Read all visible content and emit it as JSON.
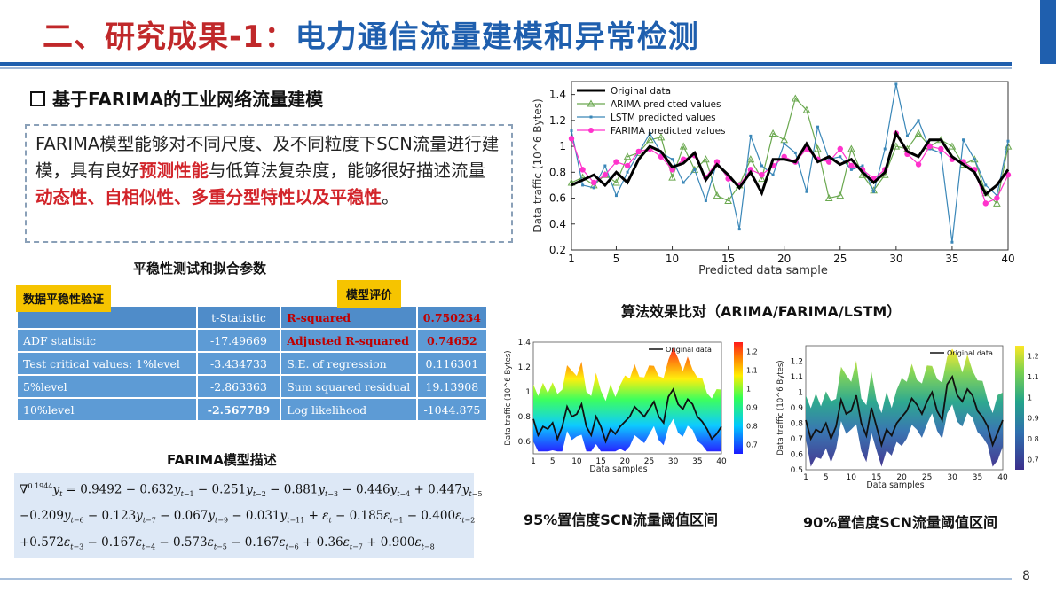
{
  "header": {
    "title_prefix": "二、研究成果-1：",
    "title_main": "电力通信流量建模和异常检测"
  },
  "section": {
    "heading": "基于FARIMA的工业网络流量建模",
    "desc_parts": [
      {
        "text": "FARIMA模型能够对不同尺度、及不同粒度下SCN流量进行建模，具有良好",
        "red": false
      },
      {
        "text": "预测性能",
        "red": true
      },
      {
        "text": "与低算法复杂度，能够很好描述流量",
        "red": false
      },
      {
        "text": "动态性、自相似性、多重分型特性以及平稳性",
        "red": true
      },
      {
        "text": "。",
        "red": false
      }
    ]
  },
  "table": {
    "title": "平稳性测试和拟合参数",
    "tag_left": "数据平稳性验证",
    "tag_right": "模型评价",
    "header": [
      "",
      "t-Statistic",
      "R-squared",
      "0.750234"
    ],
    "rows": [
      [
        "ADF statistic",
        "-17.49669",
        "Adjusted R-squared",
        "0.74652"
      ],
      [
        "Test critical values: 1%level",
        "-3.434733",
        "S.E. of regression",
        "0.116301"
      ],
      [
        "5%level",
        "-2.863363",
        "Sum squared residual",
        "19.13908"
      ],
      [
        "10%level",
        "-2.567789",
        "Log likelihood",
        "-1044.875"
      ]
    ]
  },
  "model": {
    "title": "FARIMA模型描述",
    "eq_line1": "∇^0.1944 y_t = 0.9492 − 0.632y_{t−1} − 0.251y_{t−2} − 0.881y_{t−3} − 0.446y_{t−4} + 0.447y_{t−5}",
    "eq_line2": "−0.209y_{t−6} − 0.123y_{t−7} − 0.067y_{t−9} − 0.031y_{t−11} + ε_t − 0.185ε_{t−1} − 0.400ε_{t−2}",
    "eq_line3": "+0.572ε_{t−3} − 0.167ε_{t−4} − 0.573ε_{t−5} − 0.167ε_{t−6} + 0.36ε_{t−7} + 0.900ε_{t−8}"
  },
  "comparison_title": "算法效果比对（ARIMA/FARIMA/LSTM）",
  "captions": {
    "left": "95%置信度SCN流量阈值区间",
    "right": "90%置信度SCN流量阈值区间"
  },
  "page_number": "8",
  "colors": {
    "title_red": "#c0282a",
    "title_blue": "#1f5fae",
    "table_blue": "#5d9bd5",
    "tag_yellow": "#f6c400"
  },
  "chart_data": [
    {
      "type": "line",
      "xlabel": "Predicted data sample",
      "ylabel": "Data traffic (10^6 Bytes)",
      "xlim": [
        1,
        40
      ],
      "ylim": [
        0.2,
        1.5
      ],
      "xticks": [
        "1",
        "5",
        "10",
        "15",
        "20",
        "25",
        "30",
        "35",
        "40"
      ],
      "yticks": [
        "0.2",
        "0.4",
        "0.6",
        "0.8",
        "1",
        "1.2",
        "1.4"
      ],
      "legend": "top-left",
      "series": [
        {
          "name": "Original data",
          "color": "#000000",
          "values": [
            0.7,
            0.74,
            0.78,
            0.7,
            0.8,
            0.72,
            0.9,
            1.0,
            0.96,
            0.84,
            0.87,
            0.95,
            0.74,
            0.86,
            0.78,
            0.68,
            0.8,
            0.64,
            0.9,
            0.9,
            0.88,
            1.02,
            0.88,
            0.92,
            0.86,
            0.9,
            0.8,
            0.72,
            0.8,
            1.1,
            0.96,
            0.92,
            1.05,
            1.05,
            0.92,
            0.86,
            0.8,
            0.63,
            0.7,
            0.82
          ]
        },
        {
          "name": "ARIMA predicted values",
          "color": "#6aa84f",
          "values": [
            0.72,
            0.76,
            0.7,
            0.78,
            0.72,
            0.92,
            0.95,
            1.05,
            1.07,
            0.76,
            1.0,
            0.82,
            0.9,
            0.62,
            0.58,
            0.7,
            0.9,
            0.75,
            1.1,
            1.05,
            1.37,
            1.28,
            0.98,
            0.6,
            0.62,
            0.98,
            0.78,
            0.66,
            0.78,
            1.0,
            0.98,
            1.1,
            1.0,
            1.05,
            1.0,
            0.86,
            0.9,
            0.64,
            0.56,
            1.0
          ]
        },
        {
          "name": "LSTM predicted values",
          "color": "#3a87b8",
          "values": [
            1.12,
            0.7,
            0.68,
            0.85,
            0.62,
            0.8,
            0.95,
            1.1,
            0.95,
            0.9,
            0.72,
            0.82,
            0.58,
            0.88,
            0.75,
            0.36,
            1.08,
            0.85,
            0.78,
            1.02,
            0.95,
            0.65,
            1.15,
            0.9,
            0.92,
            0.82,
            0.85,
            0.65,
            0.98,
            1.48,
            1.08,
            1.2,
            0.98,
            0.95,
            0.26,
            1.05,
            0.9,
            0.7,
            0.62,
            1.04
          ]
        },
        {
          "name": "FARIMA predicted values",
          "color": "#ff33cc",
          "values": [
            1.06,
            0.82,
            0.72,
            0.78,
            0.88,
            0.85,
            0.96,
            0.98,
            0.92,
            0.82,
            0.9,
            0.93,
            0.76,
            0.88,
            0.75,
            0.7,
            0.82,
            0.78,
            0.85,
            0.92,
            0.88,
            0.98,
            0.9,
            0.88,
            0.98,
            0.85,
            0.82,
            0.75,
            0.82,
            1.1,
            0.94,
            0.86,
            1.0,
            0.98,
            0.9,
            0.88,
            0.82,
            0.56,
            0.6,
            0.78
          ]
        }
      ]
    },
    {
      "type": "area",
      "xlabel": "Data samples",
      "ylabel": "Data traffic (10^6 Bytes)",
      "xlim": [
        1,
        40
      ],
      "ylim": [
        0.5,
        1.4
      ],
      "xticks": [
        "1",
        "5",
        "10",
        "15",
        "20",
        "25",
        "30",
        "35",
        "40"
      ],
      "yticks": [
        "0.6",
        "0.8",
        "1",
        "1.2",
        "1.4"
      ],
      "legend": "top-right",
      "series": [
        {
          "name": "Original data",
          "values": [
            0.78,
            0.65,
            0.72,
            0.7,
            0.75,
            0.62,
            0.72,
            0.88,
            0.8,
            0.82,
            0.9,
            0.72,
            0.65,
            0.8,
            0.72,
            0.6,
            0.7,
            0.66,
            0.72,
            0.76,
            0.8,
            0.88,
            0.84,
            0.8,
            0.86,
            0.92,
            0.8,
            0.75,
            0.96,
            1.02,
            0.9,
            0.86,
            0.94,
            0.9,
            0.8,
            0.76,
            0.7,
            0.62,
            0.66,
            0.72
          ]
        }
      ],
      "colorbar": {
        "colormap": "jet",
        "ticks": [
          "0.7",
          "0.8",
          "0.9",
          "1",
          "1.1",
          "1.2"
        ]
      }
    },
    {
      "type": "area",
      "xlabel": "Data samples",
      "ylabel": "Data traffic (10^6 Bytes)",
      "xlim": [
        1,
        40
      ],
      "ylim": [
        0.5,
        1.3
      ],
      "xticks": [
        "1",
        "5",
        "10",
        "15",
        "20",
        "25",
        "30",
        "35",
        "40"
      ],
      "yticks": [
        "0.5",
        "0.6",
        "0.7",
        "0.8",
        "0.9",
        "1",
        "1.1",
        "1.2"
      ],
      "legend": "top-right",
      "series": [
        {
          "name": "Original data",
          "values": [
            0.82,
            0.7,
            0.76,
            0.74,
            0.8,
            0.7,
            0.78,
            0.95,
            0.86,
            0.88,
            0.98,
            0.8,
            0.72,
            0.9,
            0.78,
            0.66,
            0.76,
            0.72,
            0.8,
            0.84,
            0.88,
            0.96,
            0.92,
            0.86,
            0.94,
            1.0,
            0.88,
            0.82,
            1.05,
            1.1,
            0.98,
            0.94,
            1.02,
            0.98,
            0.88,
            0.84,
            0.78,
            0.66,
            0.74,
            0.82
          ]
        }
      ],
      "colorbar": {
        "colormap": "viridis",
        "ticks": [
          "0.7",
          "0.8",
          "0.9",
          "1",
          "1.1",
          "1.2"
        ]
      }
    }
  ]
}
